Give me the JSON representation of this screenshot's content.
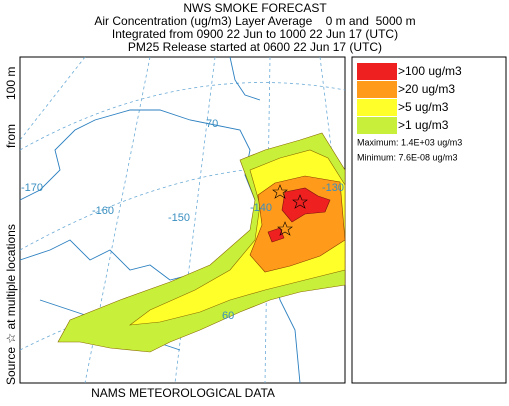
{
  "header": {
    "title": "NWS SMOKE FORECAST",
    "lines": [
      "Air Concentration (ug/m3) Layer Average    0 m and  5000 m",
      "Integrated from 0900 22 Jun to 1000 22 Jun 17 (UTC)",
      "PM25 Release started at 0600 22 Jun 17 (UTC)"
    ]
  },
  "legend": {
    "items": [
      {
        "label": ">100 ug/m3",
        "color": "#ee2020"
      },
      {
        "label": ">20 ug/m3",
        "color": "#ff9a1a"
      },
      {
        "label": ">5 ug/m3",
        "color": "#ffff2a"
      },
      {
        "label": ">1 ug/m3",
        "color": "#c8f03a"
      }
    ],
    "stats": [
      "Maximum: 1.4E+03 ug/m3",
      "Minimum: 7.6E-08 ug/m3"
    ]
  },
  "side_label": [
    "Source ☆ at multiple locations",
    "from",
    "100 m"
  ],
  "graticule_labels": [
    "-170",
    "-160",
    "-150",
    "-140",
    "-130",
    "70",
    "60"
  ],
  "footer": "NAMS METEOROLOGICAL DATA"
}
